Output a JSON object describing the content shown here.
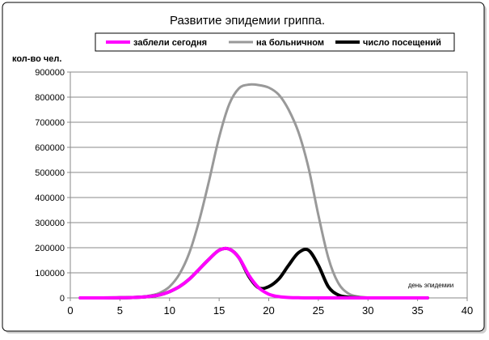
{
  "chart_data": {
    "type": "line",
    "title": "Развитие эпидемии гриппа.",
    "ylabel": "кол-во чел.",
    "xlabel": "день эпидемии",
    "xlim": [
      0,
      40
    ],
    "ylim": [
      0,
      900000
    ],
    "xticks": [
      "0",
      "5",
      "10",
      "15",
      "20",
      "25",
      "30",
      "35",
      "40"
    ],
    "yticks": [
      "0",
      "100000",
      "200000",
      "300000",
      "400000",
      "500000",
      "600000",
      "700000",
      "800000",
      "900000"
    ],
    "grid": "horizontal",
    "legend_position": "top",
    "series": [
      {
        "name": "заблели сегодня",
        "color": "#ff00ff",
        "x": [
          1,
          3,
          5,
          7,
          8,
          9,
          10,
          11,
          12,
          13,
          14,
          15,
          16,
          17,
          18,
          19,
          20,
          21,
          22,
          23,
          24,
          26,
          28,
          30,
          32,
          34,
          36
        ],
        "y": [
          0,
          0,
          500,
          3000,
          6000,
          12000,
          25000,
          45000,
          75000,
          115000,
          155000,
          190000,
          195000,
          160000,
          90000,
          40000,
          15000,
          5000,
          1500,
          500,
          0,
          0,
          0,
          0,
          0,
          0,
          0
        ]
      },
      {
        "name": "на больничном",
        "color": "#999999",
        "x": [
          1,
          3,
          5,
          7,
          8,
          9,
          10,
          11,
          12,
          13,
          14,
          15,
          16,
          17,
          18,
          19,
          20,
          21,
          22,
          23,
          24,
          25,
          26,
          27,
          28,
          29,
          30,
          32,
          34,
          36
        ],
        "y": [
          0,
          0,
          1000,
          4000,
          9000,
          20000,
          45000,
          95000,
          180000,
          310000,
          470000,
          640000,
          770000,
          835000,
          850000,
          848000,
          838000,
          810000,
          750000,
          660000,
          520000,
          330000,
          160000,
          60000,
          18000,
          5000,
          1500,
          0,
          0,
          0
        ]
      },
      {
        "name": "число посещений",
        "color": "#000000",
        "x": [
          1,
          3,
          5,
          7,
          8,
          9,
          10,
          11,
          12,
          13,
          14,
          15,
          16,
          17,
          18,
          19,
          20,
          21,
          22,
          23,
          24,
          25,
          26,
          27,
          28,
          29,
          30,
          32,
          34,
          36
        ],
        "y": [
          0,
          0,
          500,
          3000,
          6000,
          12000,
          25000,
          45000,
          75000,
          115000,
          155000,
          190000,
          195000,
          160000,
          85000,
          40000,
          45000,
          75000,
          130000,
          180000,
          190000,
          130000,
          45000,
          12000,
          3000,
          500,
          0,
          0,
          0,
          0
        ]
      }
    ]
  }
}
